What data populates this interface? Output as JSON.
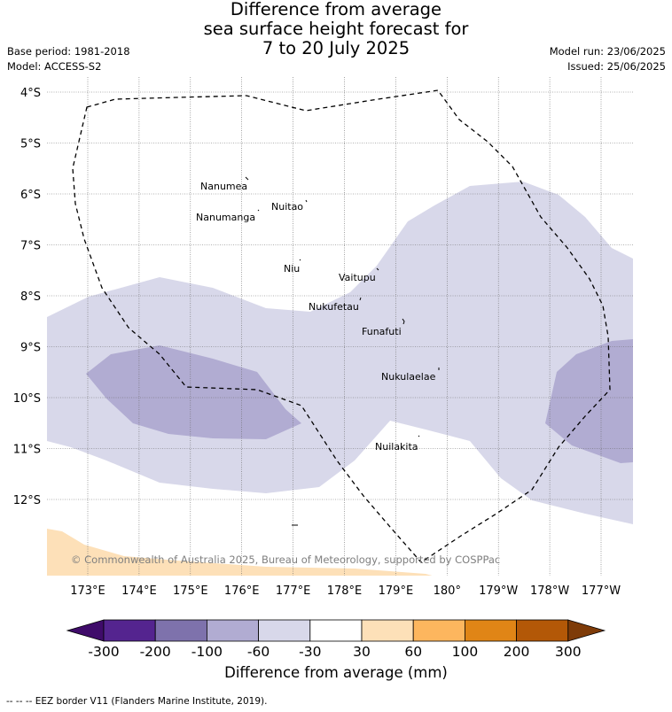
{
  "title": {
    "line1": "Difference from average",
    "line2": "sea surface height forecast for",
    "line3": "7 to 20 July 2025"
  },
  "meta": {
    "base_period": "Base period: 1981-2018",
    "model": "Model: ACCESS-S2",
    "model_run": "Model run: 23/06/2025",
    "issued": "Issued: 25/06/2025"
  },
  "map": {
    "lat_labels": [
      "4°S",
      "5°S",
      "6°S",
      "7°S",
      "8°S",
      "9°S",
      "10°S",
      "11°S",
      "12°S"
    ],
    "lon_labels": [
      "173°E",
      "174°E",
      "175°E",
      "176°E",
      "177°E",
      "178°E",
      "179°E",
      "180°",
      "179°W",
      "178°W",
      "177°W"
    ],
    "places": [
      "Nanumea",
      "Nuitao",
      "Nanumanga",
      "Niu",
      "Vaitupu",
      "Nukufetau",
      "Funafuti",
      "Nukulaelae",
      "Nuilakita"
    ],
    "copyright": "© Commonwealth of Australia 2025, Bureau of Meteorology, supported by COSPPac",
    "colors": {
      "neg_60_30": "#d8d8ea",
      "neg_100_60": "#b1acd2",
      "pos_30_60": "#fde0b8",
      "land": "#ffffff"
    }
  },
  "colorbar": {
    "title": "Difference from average (mm)",
    "ticks": [
      "-300",
      "-200",
      "-100",
      "-60",
      "-30",
      "30",
      "60",
      "100",
      "200",
      "300"
    ],
    "colors": [
      "#3f0b6a",
      "#54248f",
      "#7e72ac",
      "#b1acd2",
      "#d8d8ea",
      "#ffffff",
      "#fde0b8",
      "#fdb65e",
      "#e08516",
      "#b35807",
      "#7e3b08"
    ]
  },
  "footer": "--  --  -- EEZ border V11 (Flanders Marine Institute, 2019)."
}
